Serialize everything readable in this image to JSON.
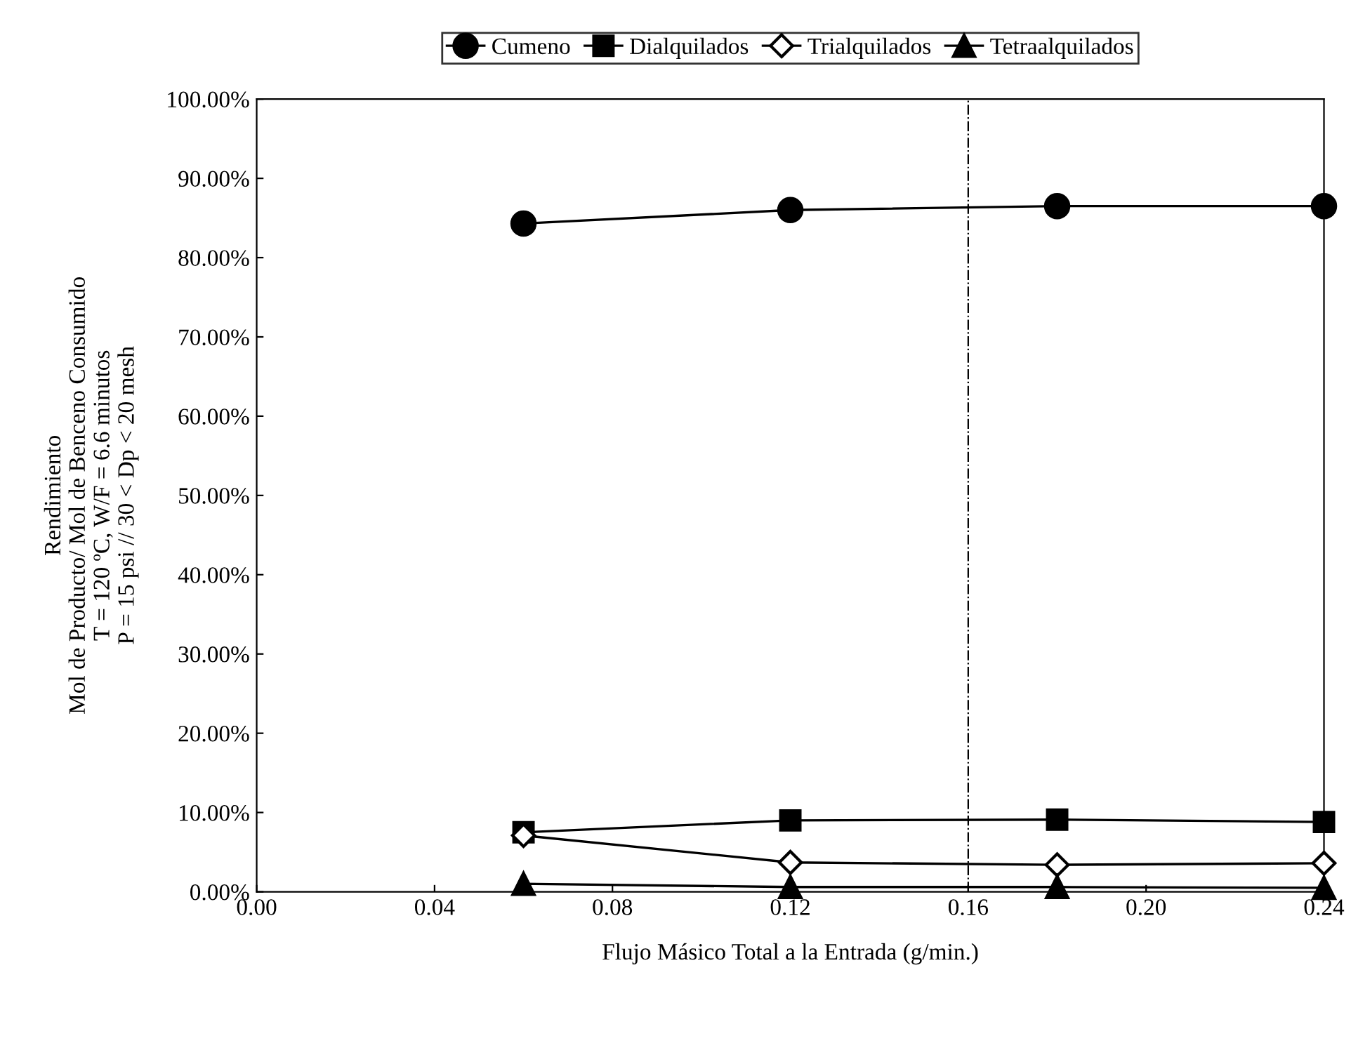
{
  "chart_data": {
    "type": "line",
    "xlabel": "Flujo Másico Total a la Entrada (g/min.)",
    "ylabel": "Rendimiento\nMol de Producto/ Mol de Benceno Consumido\nT = 120 ºC, W/F = 6.6 minutos\nP = 15 psi // 30 < Dp < 20 mesh",
    "x": [
      0.06,
      0.12,
      0.18,
      0.24
    ],
    "series": [
      {
        "name": "Cumeno",
        "color": "#000000",
        "marker": "circle",
        "values": [
          84.3,
          86.0,
          86.5,
          86.5
        ]
      },
      {
        "name": "Dialquilados",
        "color": "#000000",
        "marker": "square",
        "values": [
          7.5,
          9.0,
          9.1,
          8.8
        ]
      },
      {
        "name": "Trialquilados",
        "color": "#000000",
        "marker": "diamond",
        "values": [
          7.1,
          3.7,
          3.4,
          3.6
        ]
      },
      {
        "name": "Tetraalquilados",
        "color": "#000000",
        "marker": "triangle",
        "values": [
          1.0,
          0.6,
          0.6,
          0.5
        ]
      }
    ],
    "xlim": [
      0,
      0.24
    ],
    "xticks": [
      {
        "value": 0,
        "label": "0.00"
      },
      {
        "value": 0.04,
        "label": "0.04"
      },
      {
        "value": 0.08,
        "label": "0.08"
      },
      {
        "value": 0.12,
        "label": "0.12"
      },
      {
        "value": 0.16,
        "label": "0.16"
      },
      {
        "value": 0.2,
        "label": "0.20"
      },
      {
        "value": 0.24,
        "label": "0.24"
      }
    ],
    "ylim": [
      0,
      100
    ],
    "yticks": [
      {
        "value": 0,
        "label": "0.00%"
      },
      {
        "value": 10,
        "label": "10.00%"
      },
      {
        "value": 20,
        "label": "20.00%"
      },
      {
        "value": 30,
        "label": "30.00%"
      },
      {
        "value": 40,
        "label": "40.00%"
      },
      {
        "value": 50,
        "label": "50.00%"
      },
      {
        "value": 60,
        "label": "60.00%"
      },
      {
        "value": 70,
        "label": "70.00%"
      },
      {
        "value": 80,
        "label": "80.00%"
      },
      {
        "value": 90,
        "label": "90.00%"
      },
      {
        "value": 100,
        "label": "100.00%"
      }
    ],
    "ref_lines": [
      {
        "axis": "x",
        "value": 0.16,
        "color": "#000000",
        "line_style": "dashdot"
      }
    ],
    "legend": "top",
    "grid": false,
    "line_style": "solid"
  }
}
